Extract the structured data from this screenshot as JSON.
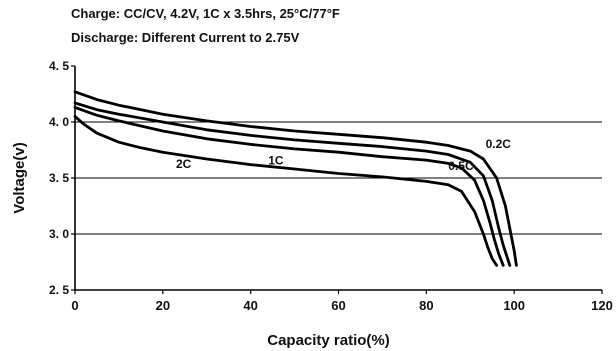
{
  "chart_data": {
    "type": "line",
    "subtitle_lines": [
      "Charge: CC/CV, 4.2V, 1C x 3.5hrs, 25°C/77°F",
      "Discharge: Different Current to 2.75V"
    ],
    "xlabel": "Capacity ratio(%)",
    "ylabel": "Voltage(v)",
    "xlim": [
      0,
      120
    ],
    "ylim": [
      2.5,
      4.5
    ],
    "x_ticks": [
      0,
      20,
      40,
      60,
      80,
      100,
      120
    ],
    "x_tick_labels": [
      "0",
      "20",
      "40",
      "60",
      "80",
      "100",
      "120"
    ],
    "y_ticks": [
      2.5,
      3.0,
      3.5,
      4.0,
      4.5
    ],
    "y_tick_labels": [
      "2. 5",
      "3. 0",
      "3. 5",
      "4. 0",
      "4. 5"
    ],
    "grid": "horizontal lines at 3.0, 3.5, 4.0",
    "legend": "inline curve labels",
    "series": [
      {
        "name": "0.2C",
        "x": [
          0,
          5,
          10,
          20,
          30,
          40,
          50,
          60,
          70,
          80,
          85,
          90,
          93,
          96,
          98,
          99,
          100,
          100.5
        ],
        "y": [
          4.27,
          4.2,
          4.15,
          4.07,
          4.01,
          3.96,
          3.92,
          3.89,
          3.86,
          3.82,
          3.79,
          3.74,
          3.67,
          3.5,
          3.25,
          3.05,
          2.85,
          2.72
        ]
      },
      {
        "name": "0.5C",
        "x": [
          0,
          5,
          10,
          20,
          30,
          40,
          50,
          60,
          70,
          80,
          85,
          90,
          93,
          95,
          96.5,
          97.5,
          98.5,
          99
        ],
        "y": [
          4.17,
          4.11,
          4.07,
          4.0,
          3.93,
          3.88,
          3.84,
          3.81,
          3.78,
          3.74,
          3.71,
          3.64,
          3.52,
          3.3,
          3.05,
          2.9,
          2.78,
          2.72
        ]
      },
      {
        "name": "1C",
        "x": [
          0,
          5,
          10,
          20,
          30,
          40,
          50,
          60,
          70,
          80,
          85,
          88,
          91,
          93,
          94.5,
          95.5,
          96.5,
          97.5
        ],
        "y": [
          4.13,
          4.06,
          4.01,
          3.92,
          3.85,
          3.8,
          3.76,
          3.73,
          3.69,
          3.66,
          3.63,
          3.59,
          3.48,
          3.3,
          3.1,
          2.95,
          2.82,
          2.72
        ]
      },
      {
        "name": "2C",
        "x": [
          0,
          2,
          5,
          10,
          15,
          20,
          30,
          40,
          50,
          60,
          70,
          80,
          85,
          88,
          91,
          93,
          94,
          95,
          96
        ],
        "y": [
          4.05,
          3.98,
          3.9,
          3.82,
          3.77,
          3.73,
          3.67,
          3.62,
          3.58,
          3.54,
          3.51,
          3.47,
          3.44,
          3.38,
          3.2,
          3.0,
          2.88,
          2.78,
          2.72
        ]
      }
    ],
    "curve_labels": [
      {
        "text": "0.2C",
        "x": 93.5,
        "y": 3.77
      },
      {
        "text": "0.5C",
        "x": 85,
        "y": 3.57
      },
      {
        "text": "1C",
        "x": 44,
        "y": 3.62
      },
      {
        "text": "2C",
        "x": 23,
        "y": 3.59
      }
    ]
  }
}
